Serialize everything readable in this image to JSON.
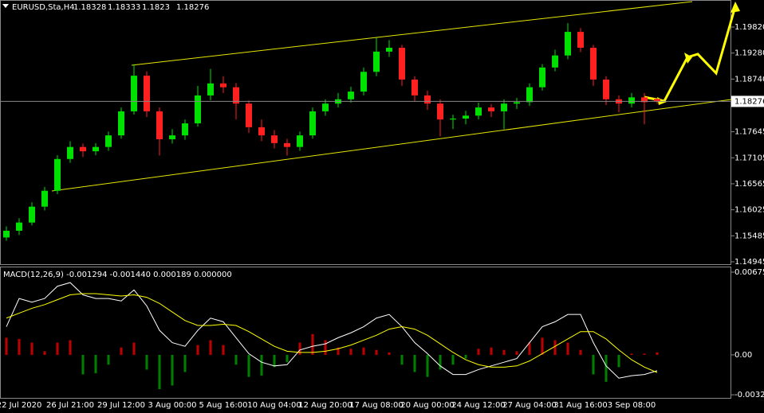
{
  "chart_data": [
    {
      "type": "candlestick",
      "title": "EURUSD,Sta,H4",
      "categories": [
        null,
        "22 Jul 2020",
        null,
        null,
        null,
        "26 Jul 21:00",
        null,
        null,
        null,
        "29 Jul 12:00",
        null,
        null,
        null,
        "3 Aug 00:00",
        null,
        null,
        null,
        "5 Aug 16:00",
        null,
        null,
        null,
        "10 Aug 04:00",
        null,
        null,
        null,
        "12 Aug 20:00",
        null,
        null,
        null,
        "17 Aug 08:00",
        null,
        null,
        null,
        "20 Aug 00:00",
        null,
        null,
        null,
        "24 Aug 12:00",
        null,
        null,
        null,
        "27 Aug 04:00",
        null,
        null,
        null,
        "31 Aug 16:00",
        null,
        null,
        null,
        "3 Sep 08:00",
        null,
        null
      ],
      "open": [
        1.1545,
        1.1559,
        1.1576,
        1.1609,
        1.1642,
        1.1708,
        1.1733,
        1.1724,
        1.1733,
        1.1757,
        1.1807,
        1.1881,
        1.1807,
        1.1749,
        1.1757,
        1.1782,
        1.184,
        1.1865,
        1.1857,
        1.1823,
        1.1774,
        1.1757,
        1.1741,
        1.1733,
        1.1757,
        1.1807,
        1.1823,
        1.1832,
        1.1848,
        1.1889,
        1.1931,
        1.1939,
        1.1873,
        1.184,
        1.1823,
        1.179,
        1.1792,
        1.1798,
        1.1815,
        1.1807,
        1.1823,
        1.1826,
        1.1857,
        1.1898,
        1.1923,
        1.1972,
        1.1939,
        1.1873,
        1.1832,
        1.1823,
        1.1836,
        1.18328
      ],
      "high": [
        1.1568,
        1.1585,
        1.1618,
        1.165,
        1.1716,
        1.1745,
        1.174,
        1.1741,
        1.1765,
        1.1815,
        1.1905,
        1.189,
        1.1815,
        1.177,
        1.179,
        1.186,
        1.1895,
        1.188,
        1.1866,
        1.183,
        1.179,
        1.1768,
        1.175,
        1.1765,
        1.1815,
        1.1832,
        1.1845,
        1.1858,
        1.1898,
        1.196,
        1.1955,
        1.1945,
        1.188,
        1.185,
        1.1832,
        1.18,
        1.1808,
        1.1825,
        1.1822,
        1.1832,
        1.1835,
        1.1865,
        1.1905,
        1.1935,
        1.199,
        1.198,
        1.1945,
        1.188,
        1.184,
        1.1845,
        1.1845,
        1.18333
      ],
      "low": [
        1.1538,
        1.155,
        1.157,
        1.1601,
        1.1635,
        1.17,
        1.1712,
        1.1716,
        1.1725,
        1.175,
        1.18,
        1.1795,
        1.1715,
        1.174,
        1.1748,
        1.1775,
        1.183,
        1.1845,
        1.179,
        1.1762,
        1.1745,
        1.173,
        1.1715,
        1.1725,
        1.175,
        1.1798,
        1.1815,
        1.1825,
        1.184,
        1.188,
        1.192,
        1.186,
        1.1828,
        1.181,
        1.1755,
        1.177,
        1.178,
        1.179,
        1.1795,
        1.177,
        1.1812,
        1.1818,
        1.185,
        1.189,
        1.1915,
        1.193,
        1.186,
        1.182,
        1.1805,
        1.1815,
        1.178,
        1.1823
      ],
      "close": [
        1.1559,
        1.1576,
        1.1609,
        1.1642,
        1.1708,
        1.1733,
        1.1724,
        1.1733,
        1.1757,
        1.1807,
        1.1881,
        1.1807,
        1.1749,
        1.1757,
        1.1782,
        1.184,
        1.1865,
        1.1857,
        1.1823,
        1.1774,
        1.1757,
        1.1741,
        1.1733,
        1.1757,
        1.1807,
        1.1823,
        1.1832,
        1.1848,
        1.1889,
        1.1931,
        1.1939,
        1.1873,
        1.184,
        1.1823,
        1.179,
        1.1792,
        1.1798,
        1.1815,
        1.1807,
        1.1823,
        1.1826,
        1.1857,
        1.1898,
        1.1923,
        1.1972,
        1.1939,
        1.1873,
        1.1832,
        1.1823,
        1.1836,
        1.1826,
        1.18276
      ],
      "up_color": "#00e000",
      "down_color": "#ff2020",
      "ylim": [
        1.14895,
        1.20349
      ],
      "yticks": [
        {
          "value": 1.1982,
          "label": "1.19820"
        },
        {
          "value": 1.1928,
          "label": "1.19280"
        },
        {
          "value": 1.1874,
          "label": "1.18740"
        },
        1.17645,
        1.17105,
        1.16565,
        1.16025,
        1.15485,
        1.14945
      ]
    },
    {
      "type": "macd",
      "title": "MACD(12,26,9) -0.001294 -0.001440 0.000189 0.000000",
      "histogram": [
        0.0014,
        0.0013,
        0.001,
        0.0003,
        0.001,
        0.0012,
        -0.0016,
        -0.0015,
        -0.0008,
        0.0006,
        0.001,
        -0.0012,
        -0.0028,
        -0.0025,
        -0.0014,
        0.0008,
        0.0012,
        0.0008,
        -0.0008,
        -0.0018,
        -0.0017,
        -0.001,
        -0.0006,
        0.001,
        0.0017,
        0.0012,
        0.0006,
        0.0005,
        0.0006,
        0.0004,
        0.0002,
        -0.0008,
        -0.0014,
        -0.0018,
        -0.0012,
        -0.0008,
        -0.0003,
        0.0005,
        0.0006,
        0.0004,
        0.0003,
        0.001,
        0.0014,
        0.0012,
        0.001,
        0.0004,
        -0.0016,
        -0.0022,
        -0.001,
        0.0001,
        0.0001,
        0.000189
      ],
      "pos_color": "#c00000",
      "neg_color": "#008000",
      "series": [
        {
          "color": "#ffffff",
          "values": [
            0.0023,
            0.0046,
            0.0043,
            0.0046,
            0.0056,
            0.0059,
            0.0049,
            0.0046,
            0.0046,
            0.0044,
            0.0053,
            0.004,
            0.002,
            0.001,
            0.0007,
            0.002,
            0.003,
            0.0027,
            0.0014,
            0.0001,
            -0.0006,
            -0.0009,
            -0.0008,
            0.0004,
            0.0007,
            0.0009,
            0.0014,
            0.0018,
            0.0023,
            0.003,
            0.0033,
            0.0023,
            0.001,
            0.0001,
            -0.0009,
            -0.0016,
            -0.0016,
            -0.0012,
            -0.0009,
            -0.0006,
            -0.0003,
            0.001,
            0.0023,
            0.0027,
            0.0033,
            0.0033,
            0.001,
            -0.0009,
            -0.0019,
            -0.0017,
            -0.0016,
            -0.001294
          ]
        },
        {
          "color": "#ffff00",
          "values": [
            0.003,
            0.0034,
            0.0038,
            0.0041,
            0.0045,
            0.0049,
            0.005,
            0.005,
            0.0049,
            0.0048,
            0.0049,
            0.0047,
            0.0042,
            0.0035,
            0.0028,
            0.0024,
            0.0024,
            0.0025,
            0.0024,
            0.0019,
            0.0013,
            0.0007,
            0.0003,
            0.0002,
            0.0002,
            0.0003,
            0.0005,
            0.0008,
            0.0012,
            0.0016,
            0.0021,
            0.0023,
            0.0021,
            0.0016,
            0.0009,
            0.0002,
            -0.0004,
            -0.0008,
            -0.001,
            -0.001,
            -0.0009,
            -0.0005,
            0.0001,
            0.0007,
            0.0013,
            0.0019,
            0.0019,
            0.0013,
            0.0004,
            -0.0004,
            -0.001,
            -0.00144
          ]
        }
      ],
      "ylim": [
        -0.00351,
        0.00701
      ],
      "yticks": [
        0.006751,
        {
          "value": 0,
          "label": "0.00"
        },
        -0.003256
      ]
    }
  ]
}
